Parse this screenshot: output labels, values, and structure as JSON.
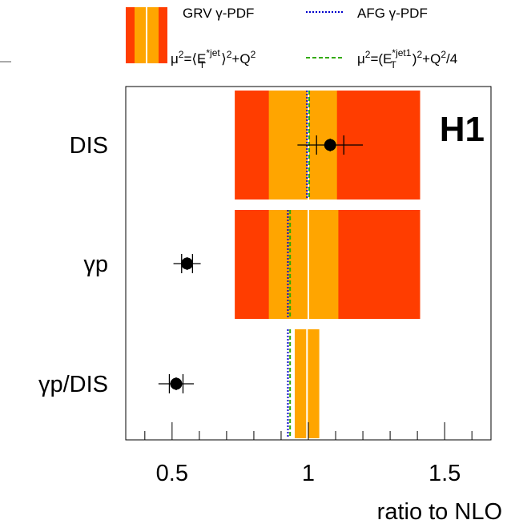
{
  "chart_data": {
    "type": "scatter",
    "xlabel": "ratio to NLO",
    "xlim": [
      0.33,
      1.67
    ],
    "x_ticks": [
      0.5,
      1,
      1.5
    ],
    "x_tick_labels": [
      "0.5",
      "1",
      "1.5"
    ],
    "categories": [
      "DIS",
      "γp",
      "γp/DIS"
    ],
    "experiment_label": "H1",
    "legend": {
      "grv": "GRV γ-PDF",
      "afg": "AFG γ-PDF",
      "mu1": "μ²=⟨E*jetT⟩²+Q²",
      "mu2": "μ²=(E*jet1T)²+Q²/4"
    },
    "legend_text": {
      "grv": [
        "GRV γ-PDF"
      ],
      "afg": [
        "AFG γ-PDF"
      ],
      "mu1": [
        "μ",
        "2",
        "=⟨E",
        "*jet",
        "T",
        "⟩",
        "2",
        "+Q",
        "2"
      ],
      "mu2": [
        "μ",
        "2",
        "=(E",
        "*jet1",
        "T",
        ")",
        "2",
        "+Q",
        "2",
        "/4"
      ]
    },
    "colors": {
      "outer_band": "#ff3d00",
      "inner_band": "#ffa500",
      "grv_line": "#ffffff",
      "afg_line": "#0000cc",
      "scale_line": "#33aa00",
      "marker": "#000000"
    },
    "series": [
      {
        "category": "DIS",
        "value": 1.08,
        "stat_err": 0.05,
        "total_err": 0.12,
        "band_outer": [
          0.73,
          1.41
        ],
        "band_inner": [
          0.855,
          1.105
        ],
        "grv": 1.0,
        "afg": 0.995,
        "scale_variation": 1.0
      },
      {
        "category": "γp",
        "value": 0.555,
        "stat_err": 0.02,
        "total_err": 0.05,
        "band_outer": [
          0.73,
          1.41
        ],
        "band_inner": [
          0.855,
          1.11
        ],
        "grv": 1.0,
        "afg": 0.925,
        "scale_variation": 0.93
      },
      {
        "category": "γp/DIS",
        "value": 0.515,
        "stat_err": 0.025,
        "total_err": 0.065,
        "band_outer": null,
        "band_inner": [
          0.95,
          1.04
        ],
        "grv": 0.995,
        "afg": 0.925,
        "scale_variation": 0.93
      }
    ]
  }
}
